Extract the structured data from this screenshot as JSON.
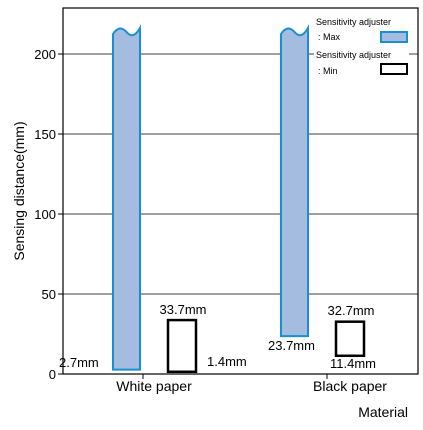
{
  "chart_data": {
    "type": "bar",
    "ylabel": "Sensing distance(mm)",
    "xlabel": "Material",
    "ylim": [
      0,
      225
    ],
    "y_ticks": [
      0,
      50,
      100,
      150,
      200
    ],
    "grid": "horizontal",
    "legend_placement": "top-right",
    "categories": [
      "White paper",
      "Black paper"
    ],
    "series": [
      {
        "name": "Sensitivity adjuster : Max",
        "color": "#a3bce0",
        "stroke": "#1a8fd0",
        "ranges": [
          [
            2.7,
            215
          ],
          [
            23.7,
            215
          ]
        ],
        "broken_top": true,
        "min_labels": [
          "2.7mm",
          "23.7mm"
        ]
      },
      {
        "name": "Sensitivity adjuster : Min",
        "color": "#ffffff",
        "stroke": "#000000",
        "ranges": [
          [
            1.4,
            33.7
          ],
          [
            11.4,
            32.7
          ]
        ],
        "broken_top": false,
        "min_labels": [
          "1.4mm",
          "11.4mm"
        ],
        "max_labels": [
          "33.7mm",
          "32.7mm"
        ]
      }
    ],
    "legend": [
      {
        "line1": "Sensitivity adjuster",
        "line2": ": Max"
      },
      {
        "line1": "Sensitivity adjuster",
        "line2": ": Min"
      }
    ]
  }
}
